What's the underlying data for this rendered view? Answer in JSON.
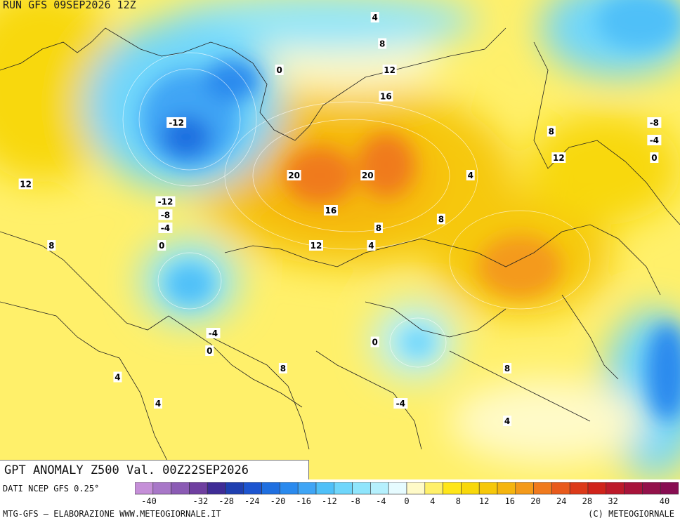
{
  "header": {
    "run_label": "RUN GFS 09SEP2026 12Z"
  },
  "map_title": "GPT ANOMALY Z500 Val. 00Z22SEP2026",
  "footer": {
    "data_source": "DATI NCEP GFS 0.25°",
    "credits_left": "MTG-GFS — ELABORAZIONE WWW.METEOGIORNALE.IT",
    "credits_right": "(C) METEOGIORNALE"
  },
  "legend": {
    "tick_labels": [
      "-40",
      "-32",
      "-28",
      "-24",
      "-20",
      "-16",
      "-12",
      "-8",
      "-4",
      "0",
      "4",
      "8",
      "12",
      "16",
      "20",
      "24",
      "28",
      "32",
      "40"
    ],
    "colors": [
      "#c58fd8",
      "#a877c8",
      "#8b5bb4",
      "#6f3fa0",
      "#3f2c96",
      "#1f3fb0",
      "#1d55d0",
      "#1f6fe0",
      "#2a8aee",
      "#3fa5f5",
      "#4fc0f8",
      "#6fd6fb",
      "#8fe5fc",
      "#b5f0fd",
      "#e6fbff",
      "#fffac8",
      "#fff06a",
      "#ffe61a",
      "#f8d80a",
      "#f6c80a",
      "#f5b50f",
      "#f49a1a",
      "#f07a1e",
      "#e85a1c",
      "#dc3a1a",
      "#d0231a",
      "#bd1a2a",
      "#a8133a",
      "#93114a",
      "#880d52"
    ]
  },
  "anomaly_labels": [
    {
      "text": "-12",
      "lon": 38,
      "lat": 66
    },
    {
      "text": "-12",
      "lon": 35,
      "lat": 57
    },
    {
      "text": "-8",
      "lon": 35,
      "lat": 55.5
    },
    {
      "text": "-4",
      "lon": 35,
      "lat": 54
    },
    {
      "text": "0",
      "lon": 34,
      "lat": 52
    },
    {
      "text": "12",
      "lon": -3,
      "lat": 59
    },
    {
      "text": "8",
      "lon": 4,
      "lat": 52
    },
    {
      "text": "0",
      "lon": 66,
      "lat": 72
    },
    {
      "text": "4",
      "lon": 92,
      "lat": 78
    },
    {
      "text": "8",
      "lon": 94,
      "lat": 75
    },
    {
      "text": "12",
      "lon": 96,
      "lat": 72
    },
    {
      "text": "16",
      "lon": 95,
      "lat": 69
    },
    {
      "text": "20",
      "lon": 70,
      "lat": 60
    },
    {
      "text": "20",
      "lon": 90,
      "lat": 60
    },
    {
      "text": "16",
      "lon": 80,
      "lat": 56
    },
    {
      "text": "12",
      "lon": 76,
      "lat": 52
    },
    {
      "text": "8",
      "lon": 93,
      "lat": 54
    },
    {
      "text": "4",
      "lon": 91,
      "lat": 52
    },
    {
      "text": "8",
      "lon": 110,
      "lat": 55
    },
    {
      "text": "4",
      "lon": 118,
      "lat": 60
    },
    {
      "text": "8",
      "lon": 140,
      "lat": 65
    },
    {
      "text": "12",
      "lon": 142,
      "lat": 62
    },
    {
      "text": "-8",
      "lon": 168,
      "lat": 66
    },
    {
      "text": "-4",
      "lon": 168,
      "lat": 64
    },
    {
      "text": "0",
      "lon": 168,
      "lat": 62
    },
    {
      "text": "-4",
      "lon": 48,
      "lat": 42
    },
    {
      "text": "0",
      "lon": 47,
      "lat": 40
    },
    {
      "text": "4",
      "lon": 22,
      "lat": 37
    },
    {
      "text": "4",
      "lon": 33,
      "lat": 34
    },
    {
      "text": "8",
      "lon": 67,
      "lat": 38
    },
    {
      "text": "0",
      "lon": 92,
      "lat": 41
    },
    {
      "text": "-4",
      "lon": 99,
      "lat": 34
    },
    {
      "text": "8",
      "lon": 128,
      "lat": 38
    },
    {
      "text": "4",
      "lon": 128,
      "lat": 32
    }
  ]
}
